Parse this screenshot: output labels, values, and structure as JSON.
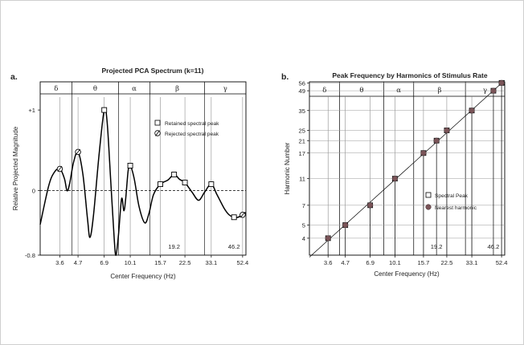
{
  "chart_data": [
    {
      "panel_label": "a.",
      "type": "line",
      "title": "Projected PCA Spectrum (k=11)",
      "xlabel": "Center Frequency (Hz)",
      "ylabel": "Relative Projected Magnitude",
      "x_scale": "log",
      "xlim": [
        2.7,
        55
      ],
      "ylim": [
        -0.8,
        1.2
      ],
      "x_ticks": [
        3.6,
        4.7,
        6.9,
        10.1,
        15.7,
        22.5,
        33.1,
        52.4
      ],
      "y_ticks": [
        {
          "value": 1,
          "label": "+1"
        },
        {
          "value": 0,
          "label": "0"
        },
        {
          "value": -0.8,
          "label": "-0.8"
        }
      ],
      "annotations": [
        {
          "x": 19.2,
          "label": "19.2"
        },
        {
          "x": 46.2,
          "label": "46.2"
        }
      ],
      "bands": [
        {
          "label": "δ",
          "from": 2.7,
          "to": 4.3
        },
        {
          "label": "θ",
          "from": 4.3,
          "to": 8.5
        },
        {
          "label": "α",
          "from": 8.5,
          "to": 13.5
        },
        {
          "label": "β",
          "from": 13.5,
          "to": 30
        },
        {
          "label": "γ",
          "from": 30,
          "to": 55
        }
      ],
      "legend": {
        "placement": "right",
        "items": [
          {
            "marker": "square",
            "label": "Retained spectral peak"
          },
          {
            "marker": "circle-slash",
            "label": "Rejected spectral peak"
          }
        ]
      },
      "curve": [
        {
          "x": 2.7,
          "y": -0.42
        },
        {
          "x": 3.05,
          "y": 0.05
        },
        {
          "x": 3.3,
          "y": 0.22
        },
        {
          "x": 3.6,
          "y": 0.27
        },
        {
          "x": 3.85,
          "y": 0.15
        },
        {
          "x": 4.0,
          "y": 0.0
        },
        {
          "x": 4.15,
          "y": 0.08
        },
        {
          "x": 4.4,
          "y": 0.35
        },
        {
          "x": 4.7,
          "y": 0.48
        },
        {
          "x": 5.05,
          "y": 0.2
        },
        {
          "x": 5.4,
          "y": -0.35
        },
        {
          "x": 5.6,
          "y": -0.58
        },
        {
          "x": 5.9,
          "y": -0.3
        },
        {
          "x": 6.4,
          "y": 0.45
        },
        {
          "x": 6.9,
          "y": 1.0
        },
        {
          "x": 7.2,
          "y": 0.85
        },
        {
          "x": 7.6,
          "y": 0.1
        },
        {
          "x": 8.0,
          "y": -0.62
        },
        {
          "x": 8.2,
          "y": -0.8
        },
        {
          "x": 8.5,
          "y": -0.55
        },
        {
          "x": 8.9,
          "y": -0.1
        },
        {
          "x": 9.2,
          "y": -0.25
        },
        {
          "x": 9.45,
          "y": -0.1
        },
        {
          "x": 9.8,
          "y": 0.25
        },
        {
          "x": 10.1,
          "y": 0.31
        },
        {
          "x": 10.7,
          "y": 0.15
        },
        {
          "x": 11.5,
          "y": -0.2
        },
        {
          "x": 12.5,
          "y": -0.4
        },
        {
          "x": 13.3,
          "y": -0.28
        },
        {
          "x": 14.2,
          "y": -0.05
        },
        {
          "x": 15.7,
          "y": 0.08
        },
        {
          "x": 17.5,
          "y": 0.13
        },
        {
          "x": 19.2,
          "y": 0.2
        },
        {
          "x": 20.8,
          "y": 0.14
        },
        {
          "x": 22.5,
          "y": 0.1
        },
        {
          "x": 25,
          "y": -0.02
        },
        {
          "x": 27.5,
          "y": -0.12
        },
        {
          "x": 30,
          "y": -0.02
        },
        {
          "x": 33.1,
          "y": 0.08
        },
        {
          "x": 36,
          "y": -0.05
        },
        {
          "x": 40,
          "y": -0.22
        },
        {
          "x": 43,
          "y": -0.3
        },
        {
          "x": 46.2,
          "y": -0.33
        },
        {
          "x": 49,
          "y": -0.33
        },
        {
          "x": 52.4,
          "y": -0.3
        },
        {
          "x": 55,
          "y": -0.27
        }
      ],
      "retained_peaks": [
        {
          "x": 6.9,
          "y": 1.0
        },
        {
          "x": 10.1,
          "y": 0.31
        },
        {
          "x": 15.7,
          "y": 0.08
        },
        {
          "x": 19.2,
          "y": 0.2
        },
        {
          "x": 22.5,
          "y": 0.1
        },
        {
          "x": 33.1,
          "y": 0.08
        },
        {
          "x": 46.2,
          "y": -0.33
        }
      ],
      "rejected_peaks": [
        {
          "x": 3.6,
          "y": 0.27
        },
        {
          "x": 4.7,
          "y": 0.48
        },
        {
          "x": 52.4,
          "y": -0.3
        }
      ]
    },
    {
      "panel_label": "b.",
      "type": "scatter",
      "title": "Peak Frequency by Harmonics of Stimulus Rate",
      "xlabel": "Center Frequency (Hz)",
      "ylabel": "Harmonic Number",
      "x_scale": "log",
      "y_scale": "log",
      "xlim": [
        2.7,
        55
      ],
      "ylim": [
        3,
        57
      ],
      "x_ticks": [
        3.6,
        4.7,
        6.9,
        10.1,
        15.7,
        22.5,
        33.1,
        52.4
      ],
      "y_ticks": [
        4,
        5,
        7,
        11,
        17,
        21,
        25,
        35,
        49,
        56
      ],
      "annotations": [
        {
          "x": 19.2,
          "label": "19.2"
        },
        {
          "x": 46.2,
          "label": "46.2"
        }
      ],
      "bands": [
        {
          "label": "δ",
          "from": 2.7,
          "to": 4.3
        },
        {
          "label": "θ",
          "from": 4.3,
          "to": 8.5
        },
        {
          "label": "α",
          "from": 8.5,
          "to": 13.5
        },
        {
          "label": "β",
          "from": 13.5,
          "to": 30
        },
        {
          "label": "γ",
          "from": 30,
          "to": 55
        }
      ],
      "legend": {
        "placement": "right",
        "items": [
          {
            "marker": "square",
            "label": "Spectral Peak"
          },
          {
            "marker": "dot",
            "label": "Nearest harmonic"
          }
        ]
      },
      "fit_line": [
        {
          "x": 2.7,
          "y": 2.9
        },
        {
          "x": 55,
          "y": 58.5
        }
      ],
      "points": [
        {
          "x": 3.6,
          "y": 4
        },
        {
          "x": 4.7,
          "y": 5
        },
        {
          "x": 6.9,
          "y": 7
        },
        {
          "x": 10.1,
          "y": 11
        },
        {
          "x": 15.7,
          "y": 17
        },
        {
          "x": 19.2,
          "y": 21
        },
        {
          "x": 22.5,
          "y": 25
        },
        {
          "x": 33.1,
          "y": 35
        },
        {
          "x": 46.2,
          "y": 49
        },
        {
          "x": 52.4,
          "y": 56
        }
      ]
    }
  ]
}
